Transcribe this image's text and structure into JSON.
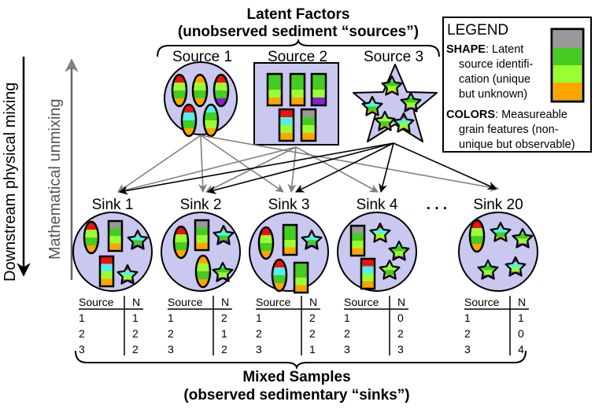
{
  "title": {
    "line1": "Latent Factors",
    "line2": "(unobserved sediment “sources”)"
  },
  "bottom_title": {
    "line1": "Mixed Samples",
    "line2": "(observed sedimentary “sinks”)"
  },
  "left_axis": {
    "outer": "Downstream physical mixing",
    "inner": "Mathematical unmixing"
  },
  "legend": {
    "title": "LEGEND",
    "shape_label": "SHAPE",
    "shape_text": [
      ": Latent",
      "source identifi-",
      "cation (unique",
      "but unknown)"
    ],
    "colors_label": "COLORS",
    "colors_text": [
      ": Measureable",
      "grain features (non-",
      "unique but observable)"
    ]
  },
  "sources": [
    "Source 1",
    "Source 2",
    "Source 3"
  ],
  "ellipsis": ". . .",
  "table_headers": {
    "source": "Source",
    "n": "N"
  },
  "sinks": [
    {
      "name": "Sink 1",
      "rows": [
        [
          "1",
          "1"
        ],
        [
          "2",
          "2"
        ],
        [
          "3",
          "2"
        ]
      ]
    },
    {
      "name": "Sink 2",
      "rows": [
        [
          "1",
          "2"
        ],
        [
          "2",
          "1"
        ],
        [
          "3",
          "2"
        ]
      ]
    },
    {
      "name": "Sink 3",
      "rows": [
        [
          "1",
          "2"
        ],
        [
          "2",
          "2"
        ],
        [
          "3",
          "1"
        ]
      ]
    },
    {
      "name": "Sink 4",
      "rows": [
        [
          "1",
          "0"
        ],
        [
          "2",
          "2"
        ],
        [
          "3",
          "3"
        ]
      ]
    },
    {
      "name": "Sink 20",
      "rows": [
        [
          "1",
          "1"
        ],
        [
          "2",
          "0"
        ],
        [
          "3",
          "4"
        ]
      ]
    }
  ],
  "colors": {
    "circle_fill": "#c8c8f0",
    "red": "#ee1111",
    "orange": "#ffa500",
    "green": "#44cc22",
    "lime": "#99ff33",
    "cyan": "#55eeee",
    "purple": "#8822cc",
    "gray": "#999999",
    "blue": "#3355ff",
    "arrow_gray": "#808080",
    "arrow_black": "#000000"
  }
}
